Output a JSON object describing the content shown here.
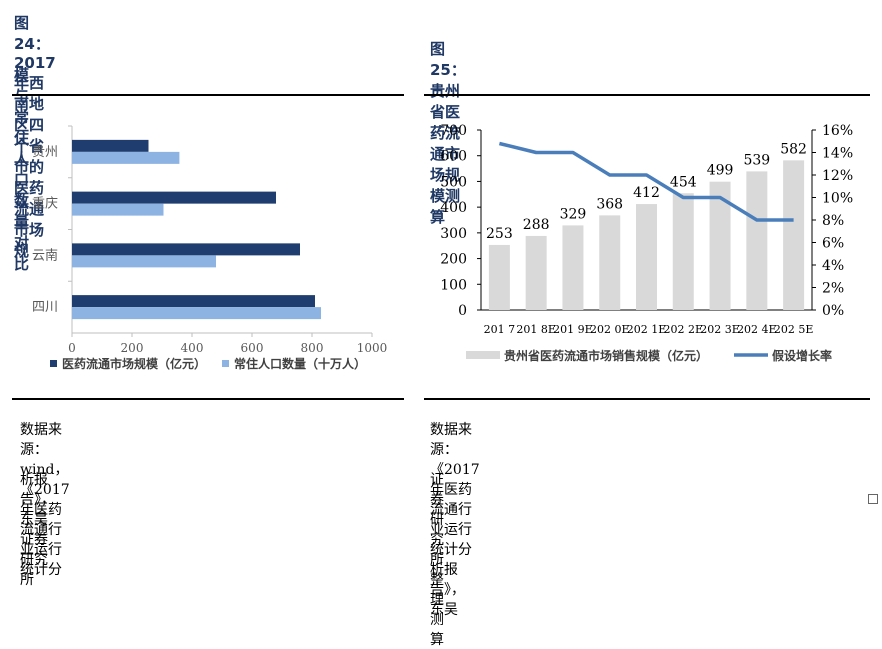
{
  "left": {
    "title_line1": "图 24：2017 年西南地区四个省市的医药流通市场规",
    "title_line2": "模与常住人口数量对比",
    "source_line1": "数据来源：wind，《2017 年医药流通行业运行统计分",
    "source_line2": "析报告》，东吴证券研究所"
  },
  "right": {
    "title": "图 25：贵州省医药流通市场规模测算",
    "source_line1": "数据来源：《2017 年医药流通行业运行统计分析报告》，东吴",
    "source_line2": "证券研究所整理测算"
  },
  "colors": {
    "navy": "#1f3d6e",
    "lightblue": "#8db3e2",
    "gray": "#d9d9d9",
    "line": "#4a7ebb",
    "title": "#1f3864"
  },
  "chart_data": [
    {
      "type": "bar",
      "orientation": "horizontal",
      "categories": [
        "贵州",
        "重庆",
        "云南",
        "四川"
      ],
      "series": [
        {
          "name": "医药流通市场规模（亿元）",
          "values": [
            255,
            680,
            760,
            810
          ]
        },
        {
          "name": "常住人口数量（十万人）",
          "values": [
            358,
            305,
            480,
            830
          ]
        }
      ],
      "xlim": [
        0,
        1000
      ],
      "xticks": [
        "0",
        "200",
        "400",
        "600",
        "800",
        "1000"
      ],
      "legend_position": "bottom"
    },
    {
      "type": "bar+line",
      "categories": [
        "2017",
        "2018E",
        "2019E",
        "2020E",
        "2021E",
        "2022E",
        "2023E",
        "2024E",
        "2025E"
      ],
      "category_labels_shown": [
        "201 7",
        "201 8E",
        "201 9E",
        "202 0E",
        "202 1E",
        "202 2E",
        "202 3E",
        "202 4E",
        "202 5E"
      ],
      "series": [
        {
          "name": "贵州省医药流通市场销售规模（亿元）",
          "type": "bar",
          "axis": "left",
          "values": [
            253,
            288,
            329,
            368,
            412,
            454,
            499,
            539,
            582
          ],
          "labels": [
            "253",
            "288",
            "329",
            "368",
            "412",
            "454",
            "499",
            "539",
            "582"
          ]
        },
        {
          "name": "假设增长率",
          "type": "line",
          "axis": "right",
          "values": [
            14.8,
            14.0,
            14.0,
            12.0,
            12.0,
            10.0,
            10.0,
            8.0,
            8.0
          ]
        }
      ],
      "ylim_left": [
        0,
        700
      ],
      "yticks_left": [
        "0",
        "100",
        "200",
        "300",
        "400",
        "500",
        "600",
        "700"
      ],
      "ylim_right": [
        0,
        16
      ],
      "yticks_right": [
        "0%",
        "2%",
        "4%",
        "6%",
        "8%",
        "10%",
        "12%",
        "14%",
        "16%"
      ],
      "legend_position": "bottom"
    }
  ]
}
